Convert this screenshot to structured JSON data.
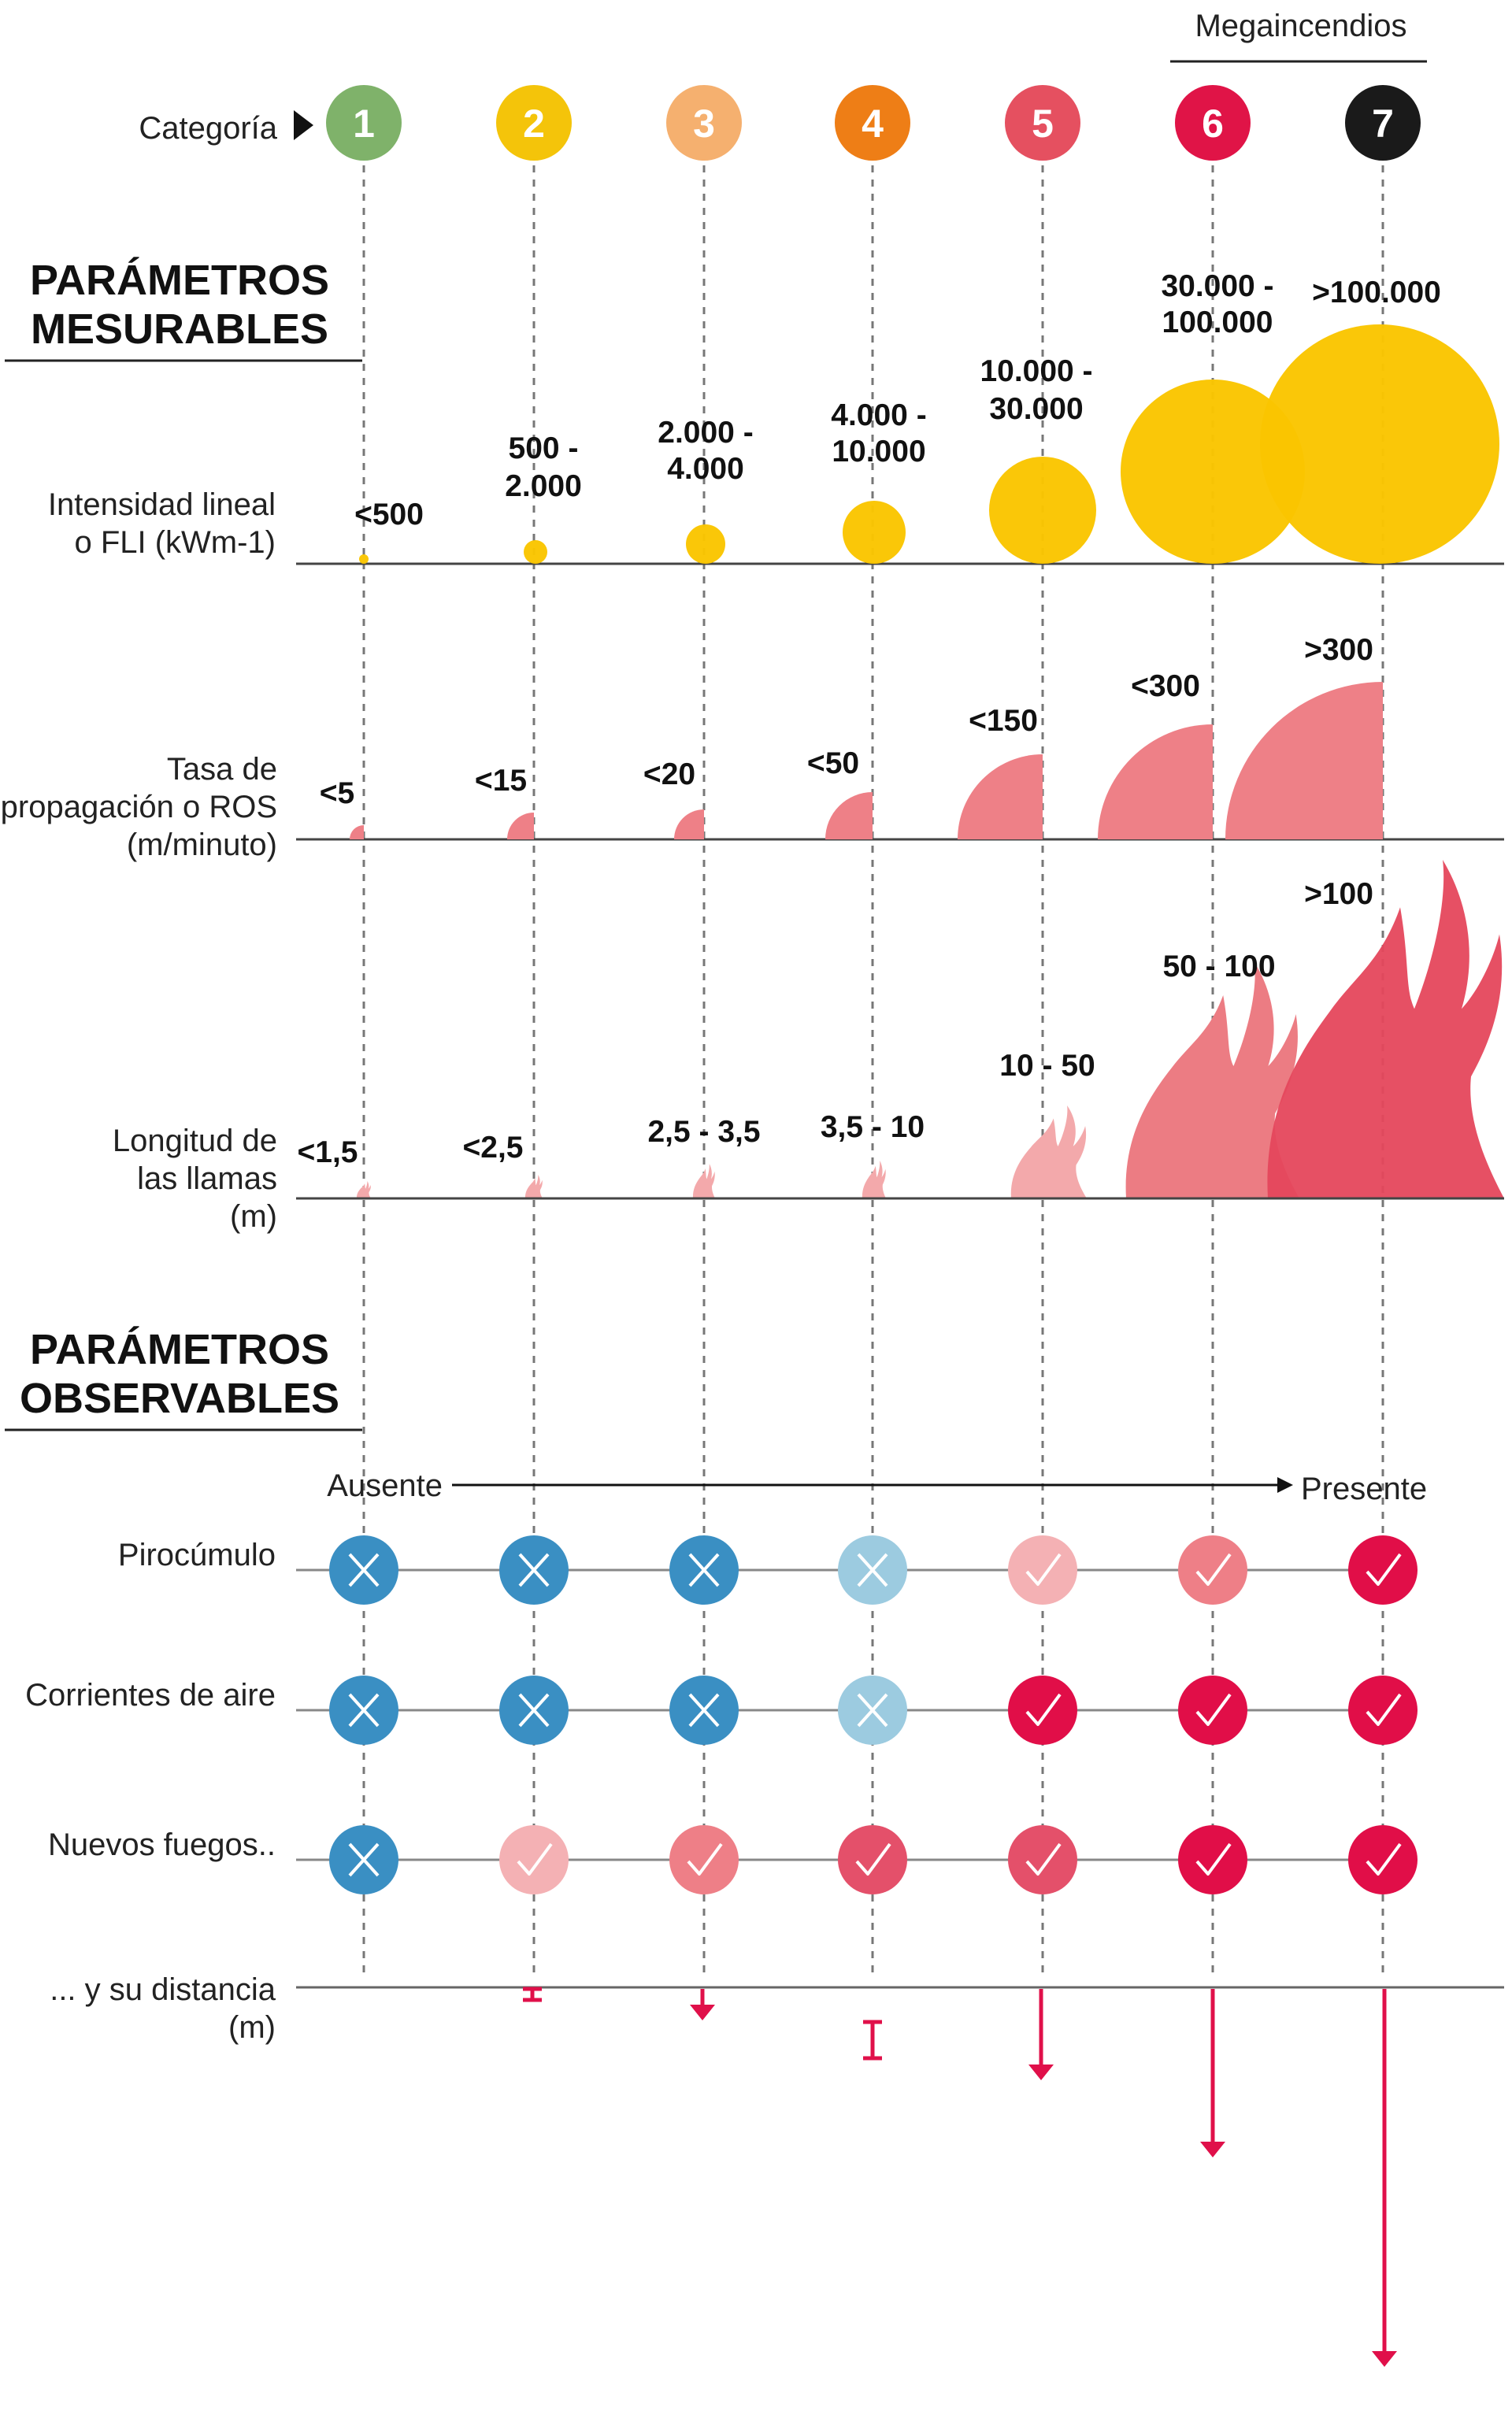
{
  "header": {
    "category_label": "Categoría",
    "mega_label": "Megaincendios"
  },
  "categories": [
    {
      "label": "1",
      "color": "#7fb26a"
    },
    {
      "label": "2",
      "color": "#f4c40a"
    },
    {
      "label": "3",
      "color": "#f5b06f"
    },
    {
      "label": "4",
      "color": "#ee7e16"
    },
    {
      "label": "5",
      "color": "#e55060"
    },
    {
      "label": "6",
      "color": "#e01447"
    },
    {
      "label": "7",
      "color": "#1a1a1a"
    }
  ],
  "measurable": {
    "title_line1": "PARÁMETROS",
    "title_line2": "MESURABLES",
    "intensity": {
      "label_line1": "Intensidad lineal",
      "label_line2": "o FLI (kWm-1)",
      "color": "#fac500",
      "values": [
        {
          "line1": "<500",
          "line2": ""
        },
        {
          "line1": "500 -",
          "line2": "2.000"
        },
        {
          "line1": "2.000 -",
          "line2": "4.000"
        },
        {
          "line1": "4.000 -",
          "line2": "10.000"
        },
        {
          "line1": "10.000 -",
          "line2": "30.000"
        },
        {
          "line1": "30.000 -",
          "line2": "100.000"
        },
        {
          "line1": ">100.000",
          "line2": ""
        }
      ]
    },
    "ros": {
      "label_line1": "Tasa de",
      "label_line2": "propagación o ROS",
      "label_line3": "(m/minuto)",
      "color": "#ee8087",
      "values": [
        "<5",
        "<15",
        "<20",
        "<50",
        "<150",
        "<300",
        ">300"
      ]
    },
    "flame": {
      "label_line1": "Longitud de",
      "label_line2": "las llamas",
      "label_line3": "(m)",
      "colors": [
        "#f3a9ab",
        "#f3a9ab",
        "#f3a9ab",
        "#f3a9ab",
        "#f3a9ab",
        "#ec7c83",
        "#e5475c"
      ],
      "values": [
        "<1,5",
        "<2,5",
        "2,5 - 3,5",
        "3,5 - 10",
        "10 - 50",
        "50 - 100",
        ">100"
      ]
    }
  },
  "observable": {
    "title_line1": "PARÁMETROS",
    "title_line2": "OBSERVABLES",
    "scale_start": "Ausente",
    "scale_end": "Presente",
    "rows": [
      {
        "label": "Pirocúmulo",
        "states": [
          "absent",
          "absent",
          "absent",
          "absent-weak",
          "present-weak",
          "present-medium",
          "present-strong"
        ]
      },
      {
        "label": "Corrientes de aire",
        "states": [
          "absent",
          "absent",
          "absent",
          "absent-weak",
          "present-strong",
          "present-strong",
          "present-strong"
        ]
      },
      {
        "label": "Nuevos fuegos..",
        "states": [
          "absent",
          "present-weak",
          "present-medium",
          "present-medium-dark",
          "present-medium-dark",
          "present-strong",
          "present-strong"
        ]
      }
    ],
    "state_colors": {
      "absent": "#3a8fc3",
      "absent-weak": "#9ccbe0",
      "present-weak": "#f4b1b4",
      "present-medium": "#ee7f87",
      "present-medium-dark": "#e4506a",
      "present-strong": "#e10e48"
    },
    "distance": {
      "label_line1": "... y su distancia",
      "label_line2": "(m)",
      "color": "#e0104a"
    }
  }
}
